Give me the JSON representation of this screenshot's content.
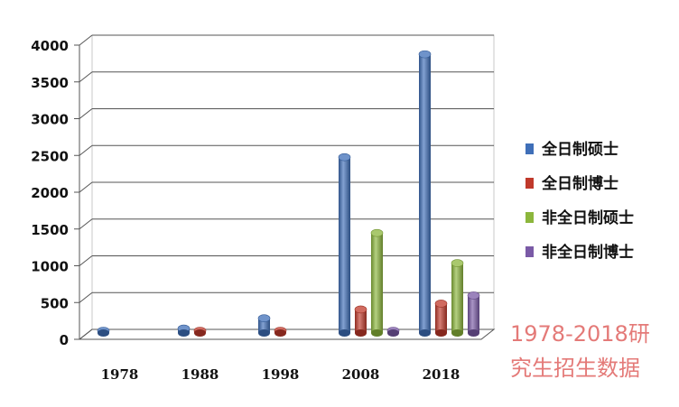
{
  "chart_data": {
    "type": "bar",
    "categories": [
      "1978",
      "1988",
      "1998",
      "2008",
      "2018"
    ],
    "series": [
      {
        "name": "全日制硕士",
        "color": "#3f6fb8",
        "values": [
          10,
          60,
          200,
          2390,
          3790
        ]
      },
      {
        "name": "全日制博士",
        "color": "#c0392b",
        "values": [
          0,
          5,
          20,
          320,
          400
        ]
      },
      {
        "name": "非全日制硕士",
        "color": "#8cb63c",
        "values": [
          0,
          0,
          0,
          1360,
          950
        ]
      },
      {
        "name": "非全日制博士",
        "color": "#7a5aa6",
        "values": [
          0,
          0,
          0,
          15,
          510
        ]
      }
    ],
    "yticks": [
      "0",
      "500",
      "1000",
      "1500",
      "2000",
      "2500",
      "3000",
      "3500",
      "4000"
    ],
    "ylim": [
      0,
      4000
    ],
    "grid": true,
    "legend": "right"
  },
  "caption": {
    "line1": "1978-2018研",
    "line2": "究生招生数据"
  }
}
